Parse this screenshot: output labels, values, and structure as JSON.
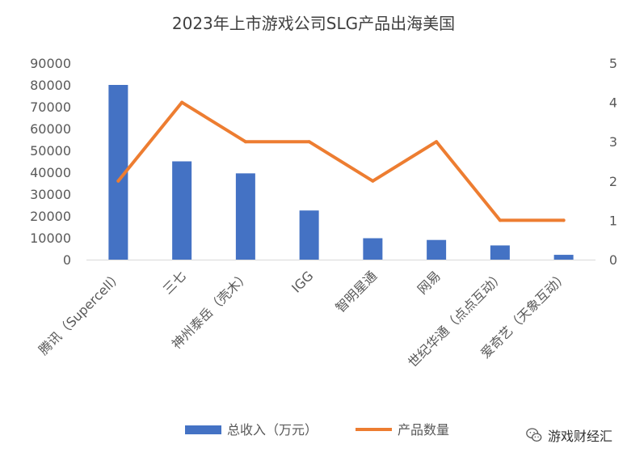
{
  "chart_data": {
    "type": "bar+line",
    "title": "2023年上市游戏公司SLG产品出海美国",
    "categories": [
      "腾讯（Supercell）",
      "三七",
      "神州泰岳（壳木）",
      "IGG",
      "智明星通",
      "网易",
      "世纪华通（点点互动）",
      "爱奇艺（天象互动）"
    ],
    "series": [
      {
        "name": "总收入（万元）",
        "type": "bar",
        "axis": "left",
        "color": "#4472C4",
        "values": [
          80000,
          45000,
          39500,
          22500,
          9800,
          9000,
          6500,
          2200
        ]
      },
      {
        "name": "产品数量",
        "type": "line",
        "axis": "right",
        "color": "#ED7D31",
        "values": [
          2,
          4,
          3,
          3,
          2,
          3,
          1,
          1
        ]
      }
    ],
    "y_left": {
      "ylim": [
        0,
        90000
      ],
      "ticks": [
        "0",
        "10000",
        "20000",
        "30000",
        "40000",
        "50000",
        "60000",
        "70000",
        "80000",
        "90000"
      ]
    },
    "y_right": {
      "ylim": [
        0,
        5
      ],
      "ticks": [
        "0",
        "1",
        "2",
        "3",
        "4",
        "5"
      ]
    },
    "legend_position": "bottom",
    "grid": false
  },
  "watermark": {
    "text": "游戏财经汇",
    "icon": "wechat-icon"
  }
}
